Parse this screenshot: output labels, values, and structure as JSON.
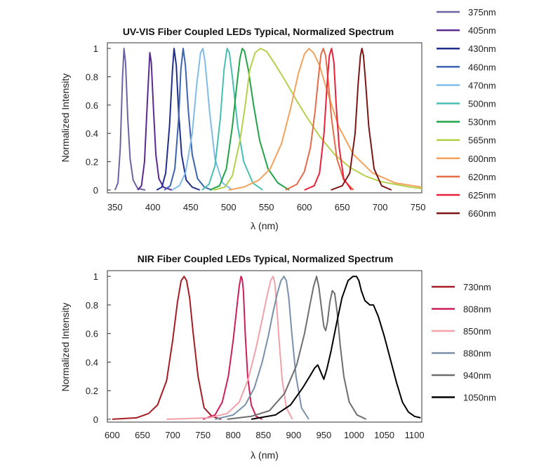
{
  "chart_data": [
    {
      "type": "line",
      "title": "UV-VIS Fiber Coupled LEDs Typical, Normalized Spectrum",
      "xlabel": "λ (nm)",
      "ylabel": "Normalized Intensity",
      "xlim": [
        340,
        755
      ],
      "ylim": [
        -0.02,
        1.04
      ],
      "xticks": [
        "350",
        "400",
        "450",
        "500",
        "550",
        "600",
        "650",
        "700",
        "750"
      ],
      "yticks": [
        "0",
        "0.2",
        "0.4",
        "0.6",
        "0.8",
        "1"
      ],
      "legend_position": "right",
      "grid": false,
      "series": [
        {
          "name": "375nm",
          "color": "#6b63a3",
          "x": [
            350,
            354,
            357,
            360,
            362,
            364,
            367,
            370,
            374,
            380,
            390
          ],
          "y": [
            0,
            0.05,
            0.3,
            0.8,
            1.0,
            0.9,
            0.5,
            0.22,
            0.07,
            0.01,
            0
          ]
        },
        {
          "name": "405nm",
          "color": "#5b2a91",
          "x": [
            380,
            385,
            389,
            393,
            396,
            398,
            401,
            404,
            408,
            414,
            425
          ],
          "y": [
            0,
            0.03,
            0.2,
            0.65,
            0.97,
            0.9,
            0.55,
            0.25,
            0.08,
            0.02,
            0
          ]
        },
        {
          "name": "430nm",
          "color": "#1f2f8a",
          "x": [
            405,
            412,
            417,
            422,
            426,
            428,
            431,
            434,
            438,
            444,
            452,
            462
          ],
          "y": [
            0,
            0.02,
            0.12,
            0.45,
            0.85,
            1.0,
            0.88,
            0.55,
            0.25,
            0.07,
            0.02,
            0
          ]
        },
        {
          "name": "460nm",
          "color": "#3c63b0",
          "x": [
            415,
            423,
            429,
            434,
            437,
            440,
            443,
            447,
            452,
            459,
            468,
            478
          ],
          "y": [
            0,
            0.03,
            0.15,
            0.5,
            0.85,
            1.0,
            0.88,
            0.55,
            0.25,
            0.08,
            0.02,
            0
          ]
        },
        {
          "name": "470nm",
          "color": "#7fbde8",
          "x": [
            425,
            435,
            443,
            452,
            458,
            463,
            466,
            469,
            475,
            482,
            492,
            505
          ],
          "y": [
            0,
            0.03,
            0.12,
            0.4,
            0.75,
            0.97,
            1.0,
            0.9,
            0.55,
            0.22,
            0.05,
            0
          ]
        },
        {
          "name": "500nm",
          "color": "#48bfb0",
          "x": [
            465,
            474,
            482,
            489,
            494,
            498,
            501,
            505,
            512,
            520,
            532,
            545
          ],
          "y": [
            0,
            0.04,
            0.17,
            0.5,
            0.85,
            1.0,
            0.97,
            0.8,
            0.45,
            0.2,
            0.05,
            0
          ]
        },
        {
          "name": "530nm",
          "color": "#22a348",
          "x": [
            475,
            488,
            497,
            505,
            511,
            515,
            518,
            521,
            526,
            533,
            541,
            552,
            565,
            580
          ],
          "y": [
            0,
            0.03,
            0.15,
            0.45,
            0.75,
            0.93,
            1.0,
            0.98,
            0.85,
            0.6,
            0.35,
            0.15,
            0.05,
            0
          ]
        },
        {
          "name": "565nm",
          "color": "#b4d14a",
          "x": [
            480,
            495,
            505,
            515,
            522,
            528,
            535,
            542,
            550,
            560,
            575,
            590,
            605,
            620,
            640,
            660,
            680,
            700,
            720,
            740,
            755
          ],
          "y": [
            0,
            0.02,
            0.1,
            0.35,
            0.6,
            0.85,
            0.97,
            1.0,
            0.98,
            0.9,
            0.77,
            0.63,
            0.5,
            0.38,
            0.25,
            0.16,
            0.1,
            0.06,
            0.04,
            0.02,
            0.01
          ]
        },
        {
          "name": "600nm",
          "color": "#f5a25e",
          "x": [
            500,
            520,
            540,
            555,
            570,
            582,
            592,
            600,
            606,
            612,
            620,
            630,
            645,
            665,
            690,
            720,
            755
          ],
          "y": [
            0,
            0.02,
            0.07,
            0.15,
            0.33,
            0.58,
            0.82,
            0.96,
            1.0,
            0.97,
            0.88,
            0.7,
            0.45,
            0.25,
            0.12,
            0.05,
            0.02
          ]
        },
        {
          "name": "620nm",
          "color": "#e86b48",
          "x": [
            575,
            590,
            600,
            608,
            614,
            619,
            622,
            625,
            628,
            631,
            636,
            643,
            652,
            665
          ],
          "y": [
            0,
            0.04,
            0.13,
            0.3,
            0.55,
            0.82,
            0.96,
            1.0,
            0.95,
            0.8,
            0.5,
            0.22,
            0.07,
            0
          ]
        },
        {
          "name": "625nm",
          "color": "#e8223a",
          "x": [
            600,
            613,
            620,
            626,
            630,
            633,
            636,
            639,
            642,
            646,
            652,
            662
          ],
          "y": [
            0,
            0.03,
            0.12,
            0.4,
            0.75,
            0.95,
            1.0,
            0.9,
            0.6,
            0.3,
            0.08,
            0
          ]
        },
        {
          "name": "660nm",
          "color": "#7c1515",
          "x": [
            635,
            650,
            660,
            667,
            671,
            674,
            676,
            678,
            681,
            685,
            692,
            702,
            715
          ],
          "y": [
            0,
            0.03,
            0.12,
            0.4,
            0.75,
            0.95,
            1.0,
            0.95,
            0.75,
            0.45,
            0.15,
            0.03,
            0
          ]
        }
      ]
    },
    {
      "type": "line",
      "title": "NIR Fiber Coupled LEDs Typical, Normalized Spectrum",
      "xlabel": "λ (nm)",
      "ylabel": "Normalized Intensity",
      "xlim": [
        592,
        1112
      ],
      "ylim": [
        -0.02,
        1.04
      ],
      "xticks": [
        "600",
        "650",
        "700",
        "750",
        "800",
        "850",
        "900",
        "950",
        "1000",
        "1050",
        "1100"
      ],
      "yticks": [
        "0",
        "0.2",
        "0.4",
        "0.6",
        "0.8",
        "1"
      ],
      "legend_position": "right",
      "grid": false,
      "series": [
        {
          "name": "730nm",
          "color": "#a51c24",
          "x": [
            600,
            640,
            660,
            675,
            690,
            700,
            708,
            714,
            719,
            723,
            728,
            734,
            742,
            752,
            765,
            780
          ],
          "y": [
            0,
            0.01,
            0.04,
            0.1,
            0.27,
            0.55,
            0.82,
            0.97,
            1.0,
            0.97,
            0.85,
            0.6,
            0.3,
            0.08,
            0.02,
            0
          ]
        },
        {
          "name": "808nm",
          "color": "#cc1f5b",
          "x": [
            750,
            770,
            782,
            792,
            800,
            806,
            810,
            813,
            815,
            817,
            820,
            824,
            830,
            838,
            848
          ],
          "y": [
            0,
            0.03,
            0.12,
            0.3,
            0.55,
            0.78,
            0.93,
            1.0,
            0.98,
            0.9,
            0.6,
            0.3,
            0.1,
            0.02,
            0
          ]
        },
        {
          "name": "850nm",
          "color": "#f4a0a8",
          "x": [
            690,
            760,
            790,
            810,
            825,
            838,
            848,
            856,
            862,
            866,
            869,
            872,
            876,
            881,
            888,
            898
          ],
          "y": [
            0,
            0.01,
            0.04,
            0.12,
            0.28,
            0.5,
            0.7,
            0.86,
            0.97,
            1.0,
            0.95,
            0.8,
            0.55,
            0.28,
            0.08,
            0
          ]
        },
        {
          "name": "880nm",
          "color": "#7a90aa",
          "x": [
            770,
            800,
            820,
            835,
            848,
            858,
            866,
            873,
            879,
            884,
            888,
            892,
            897,
            904,
            913,
            925
          ],
          "y": [
            0,
            0.03,
            0.1,
            0.22,
            0.4,
            0.58,
            0.75,
            0.88,
            0.97,
            1.0,
            0.97,
            0.85,
            0.6,
            0.3,
            0.08,
            0
          ]
        },
        {
          "name": "940nm",
          "color": "#6e6e6e",
          "x": [
            790,
            830,
            860,
            885,
            905,
            918,
            927,
            933,
            938,
            942,
            946,
            950,
            953,
            956,
            960,
            964,
            968,
            972,
            977,
            983,
            992,
            1005,
            1020
          ],
          "y": [
            0,
            0.02,
            0.06,
            0.18,
            0.38,
            0.6,
            0.8,
            0.93,
            1.0,
            0.92,
            0.78,
            0.65,
            0.62,
            0.68,
            0.82,
            0.9,
            0.88,
            0.75,
            0.52,
            0.3,
            0.12,
            0.03,
            0
          ]
        },
        {
          "name": "1050nm",
          "color": "#000000",
          "x": [
            830,
            870,
            895,
            915,
            928,
            935,
            940,
            945,
            950,
            955,
            962,
            970,
            980,
            990,
            998,
            1004,
            1008,
            1012,
            1018,
            1026,
            1032,
            1040,
            1050,
            1060,
            1070,
            1080,
            1090,
            1100,
            1110
          ],
          "y": [
            0,
            0.03,
            0.1,
            0.22,
            0.31,
            0.36,
            0.38,
            0.33,
            0.28,
            0.35,
            0.48,
            0.65,
            0.85,
            0.97,
            1.0,
            1.0,
            0.97,
            0.9,
            0.83,
            0.8,
            0.8,
            0.72,
            0.58,
            0.42,
            0.26,
            0.12,
            0.05,
            0.02,
            0.01
          ]
        }
      ]
    }
  ]
}
